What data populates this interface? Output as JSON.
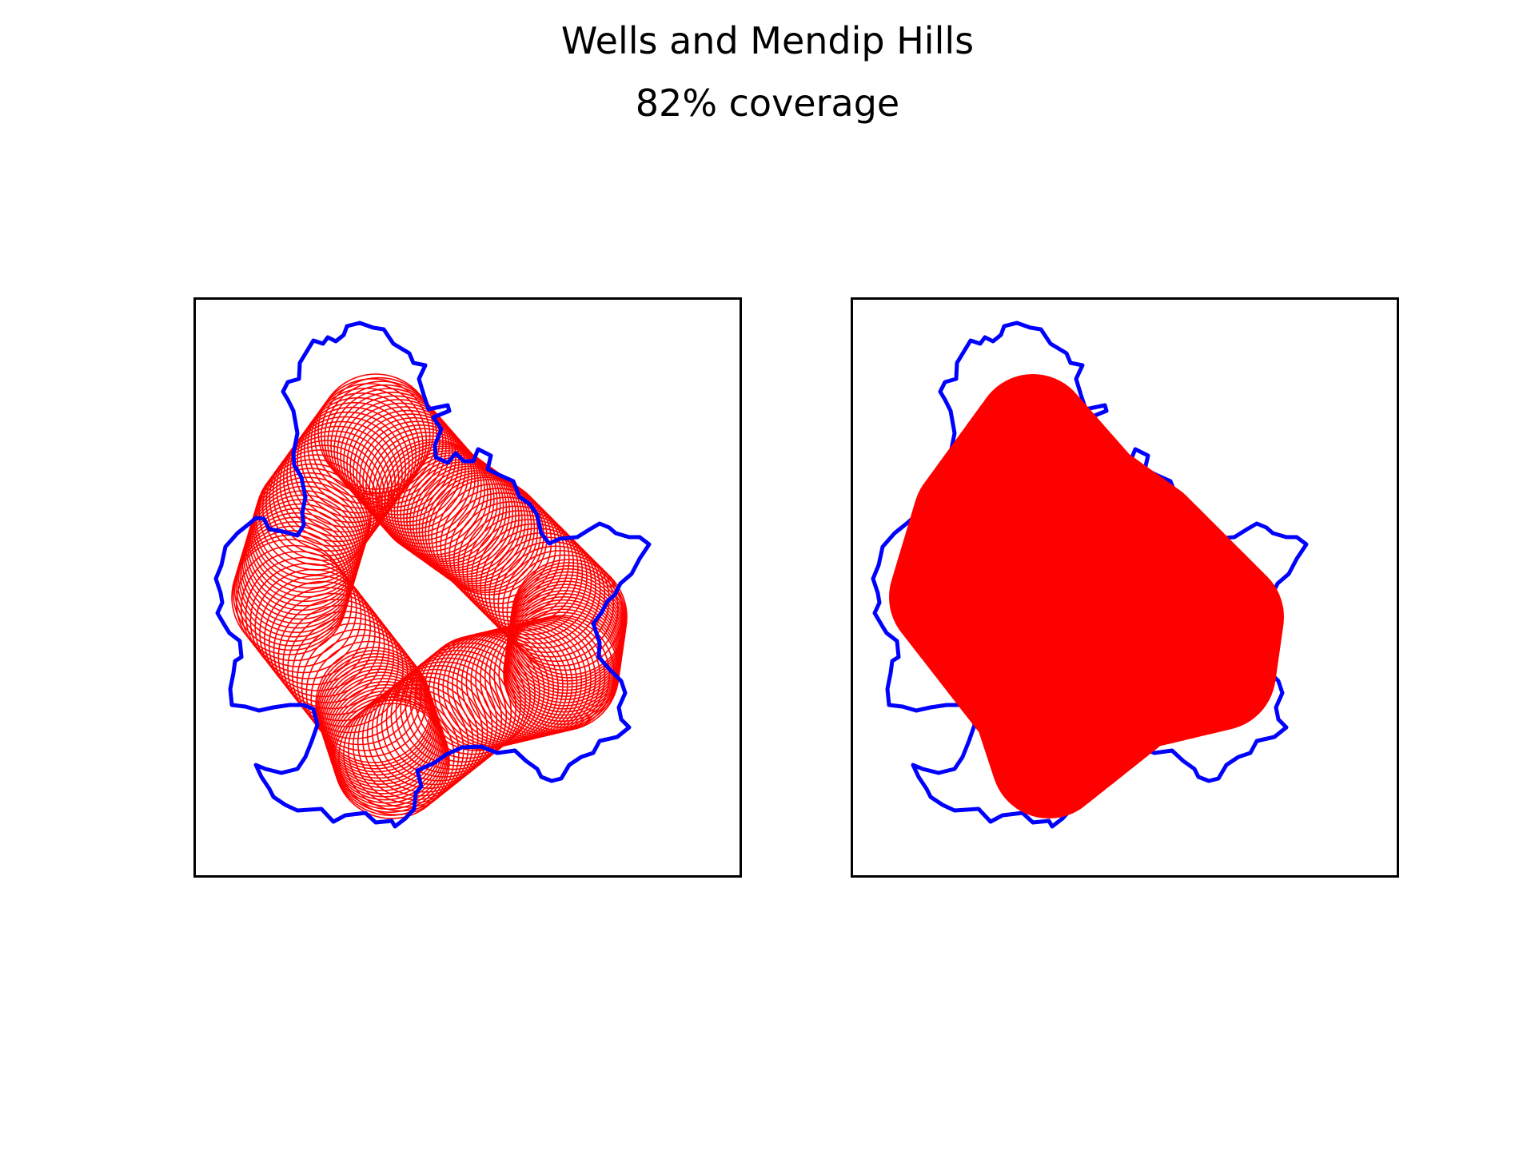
{
  "figure": {
    "title": "Wells and Mendip Hills",
    "subtitle": "82% coverage"
  },
  "colors": {
    "boundary": "#0000ff",
    "coverage": "#ff0000",
    "frame": "#000000",
    "background": "#ffffff"
  },
  "panels": [
    {
      "name": "circle-outlines",
      "style": "outlined-circles"
    },
    {
      "name": "coverage-union",
      "style": "filled-union"
    }
  ]
}
